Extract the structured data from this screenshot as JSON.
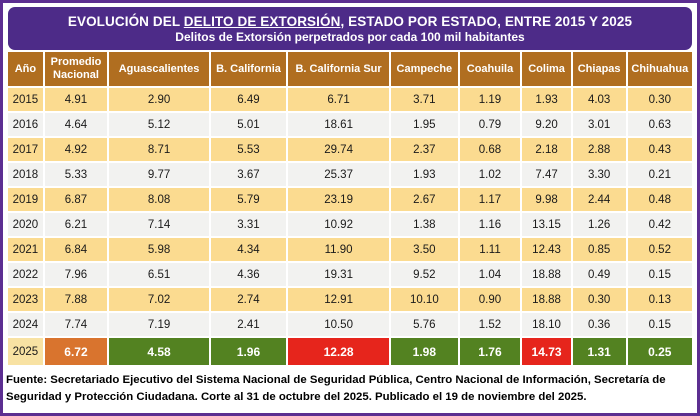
{
  "title": {
    "line1_prefix": "EVOLUCIÓN DEL ",
    "line1_underlined": "DELITO DE EXTORSIÓN",
    "line1_suffix": ", ESTADO POR ESTADO, ENTRE 2015 Y 2025",
    "line2": "Delitos de Extorsión perpetrados por cada 100 mil habitantes"
  },
  "footer": {
    "text": "Fuente: Secretariado Ejecutivo del Sistema Nacional de Seguridad Pública, Centro Nacional de Información, Secretaría de Seguridad y Protección Ciudadana. Corte al 31 de octubre del 2025. Publicado el 19 de noviembre del 2025."
  },
  "colors": {
    "outer_border_purple": "#5c2e91",
    "title_banner_purple": "#4d2b88",
    "header_brown": "#b06e20",
    "row_tan": "#fbdb90",
    "row_gray": "#f2f2f0",
    "final_year_tan": "#f8e2a3",
    "highlight_orange": "#d9742e",
    "highlight_green": "#538221",
    "highlight_red": "#e6251c"
  },
  "chart_data": {
    "type": "table",
    "title": "EVOLUCIÓN DEL DELITO DE EXTORSIÓN, ESTADO POR ESTADO, ENTRE 2015 Y 2025",
    "subtitle": "Delitos de Extorsión perpetrados por cada 100 mil habitantes",
    "columns": [
      "Año",
      "Promedio Nacional",
      "Aguascalientes",
      "B. California",
      "B. California Sur",
      "Campeche",
      "Coahuila",
      "Colima",
      "Chiapas",
      "Chihuahua"
    ],
    "rows": [
      {
        "year": "2015",
        "values": [
          "4.91",
          "2.90",
          "6.49",
          "6.71",
          "3.71",
          "1.19",
          "1.93",
          "4.03",
          "0.30"
        ]
      },
      {
        "year": "2016",
        "values": [
          "4.64",
          "5.12",
          "5.01",
          "18.61",
          "1.95",
          "0.79",
          "9.20",
          "3.01",
          "0.63"
        ]
      },
      {
        "year": "2017",
        "values": [
          "4.92",
          "8.71",
          "5.53",
          "29.74",
          "2.37",
          "0.68",
          "2.18",
          "2.88",
          "0.43"
        ]
      },
      {
        "year": "2018",
        "values": [
          "5.33",
          "9.77",
          "3.67",
          "25.37",
          "1.93",
          "1.02",
          "7.47",
          "3.30",
          "0.21"
        ]
      },
      {
        "year": "2019",
        "values": [
          "6.87",
          "8.08",
          "5.79",
          "23.19",
          "2.67",
          "1.17",
          "9.98",
          "2.44",
          "0.48"
        ]
      },
      {
        "year": "2020",
        "values": [
          "6.21",
          "7.14",
          "3.31",
          "10.92",
          "1.38",
          "1.16",
          "13.15",
          "1.26",
          "0.42"
        ]
      },
      {
        "year": "2021",
        "values": [
          "6.84",
          "5.98",
          "4.34",
          "11.90",
          "3.50",
          "1.11",
          "12.43",
          "0.85",
          "0.52"
        ]
      },
      {
        "year": "2022",
        "values": [
          "7.96",
          "6.51",
          "4.36",
          "19.31",
          "9.52",
          "1.04",
          "18.88",
          "0.49",
          "0.15"
        ]
      },
      {
        "year": "2023",
        "values": [
          "7.88",
          "7.02",
          "2.74",
          "12.91",
          "10.10",
          "0.90",
          "18.88",
          "0.30",
          "0.13"
        ]
      },
      {
        "year": "2024",
        "values": [
          "7.74",
          "7.19",
          "2.41",
          "10.50",
          "5.76",
          "1.52",
          "18.10",
          "0.36",
          "0.15"
        ]
      }
    ],
    "final_row": {
      "year": "2025",
      "values": [
        "6.72",
        "4.58",
        "1.96",
        "12.28",
        "1.98",
        "1.76",
        "14.73",
        "1.31",
        "0.25"
      ],
      "cell_colors": [
        "#d9742e",
        "#538221",
        "#538221",
        "#e6251c",
        "#538221",
        "#538221",
        "#e6251c",
        "#538221",
        "#538221"
      ]
    }
  }
}
